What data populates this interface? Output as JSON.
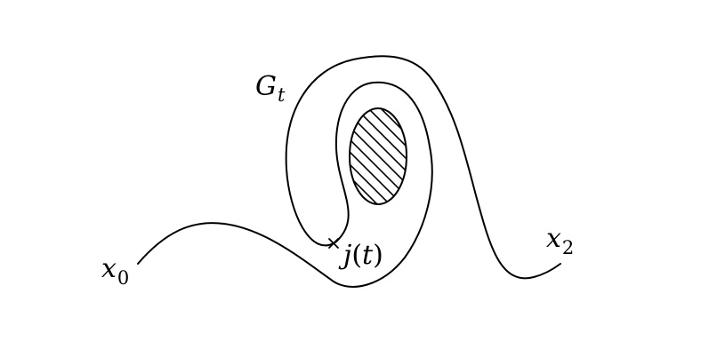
{
  "labels": {
    "curve_label": {
      "base": "G",
      "sub": "t"
    },
    "start_point": {
      "base": "x",
      "sub": "0"
    },
    "end_point": {
      "base": "x",
      "sub": "2"
    },
    "marked_point": {
      "func": "j",
      "open": "(",
      "arg": "t",
      "close": ")"
    }
  },
  "colors": {
    "stroke": "#000000",
    "background": "#ffffff"
  }
}
